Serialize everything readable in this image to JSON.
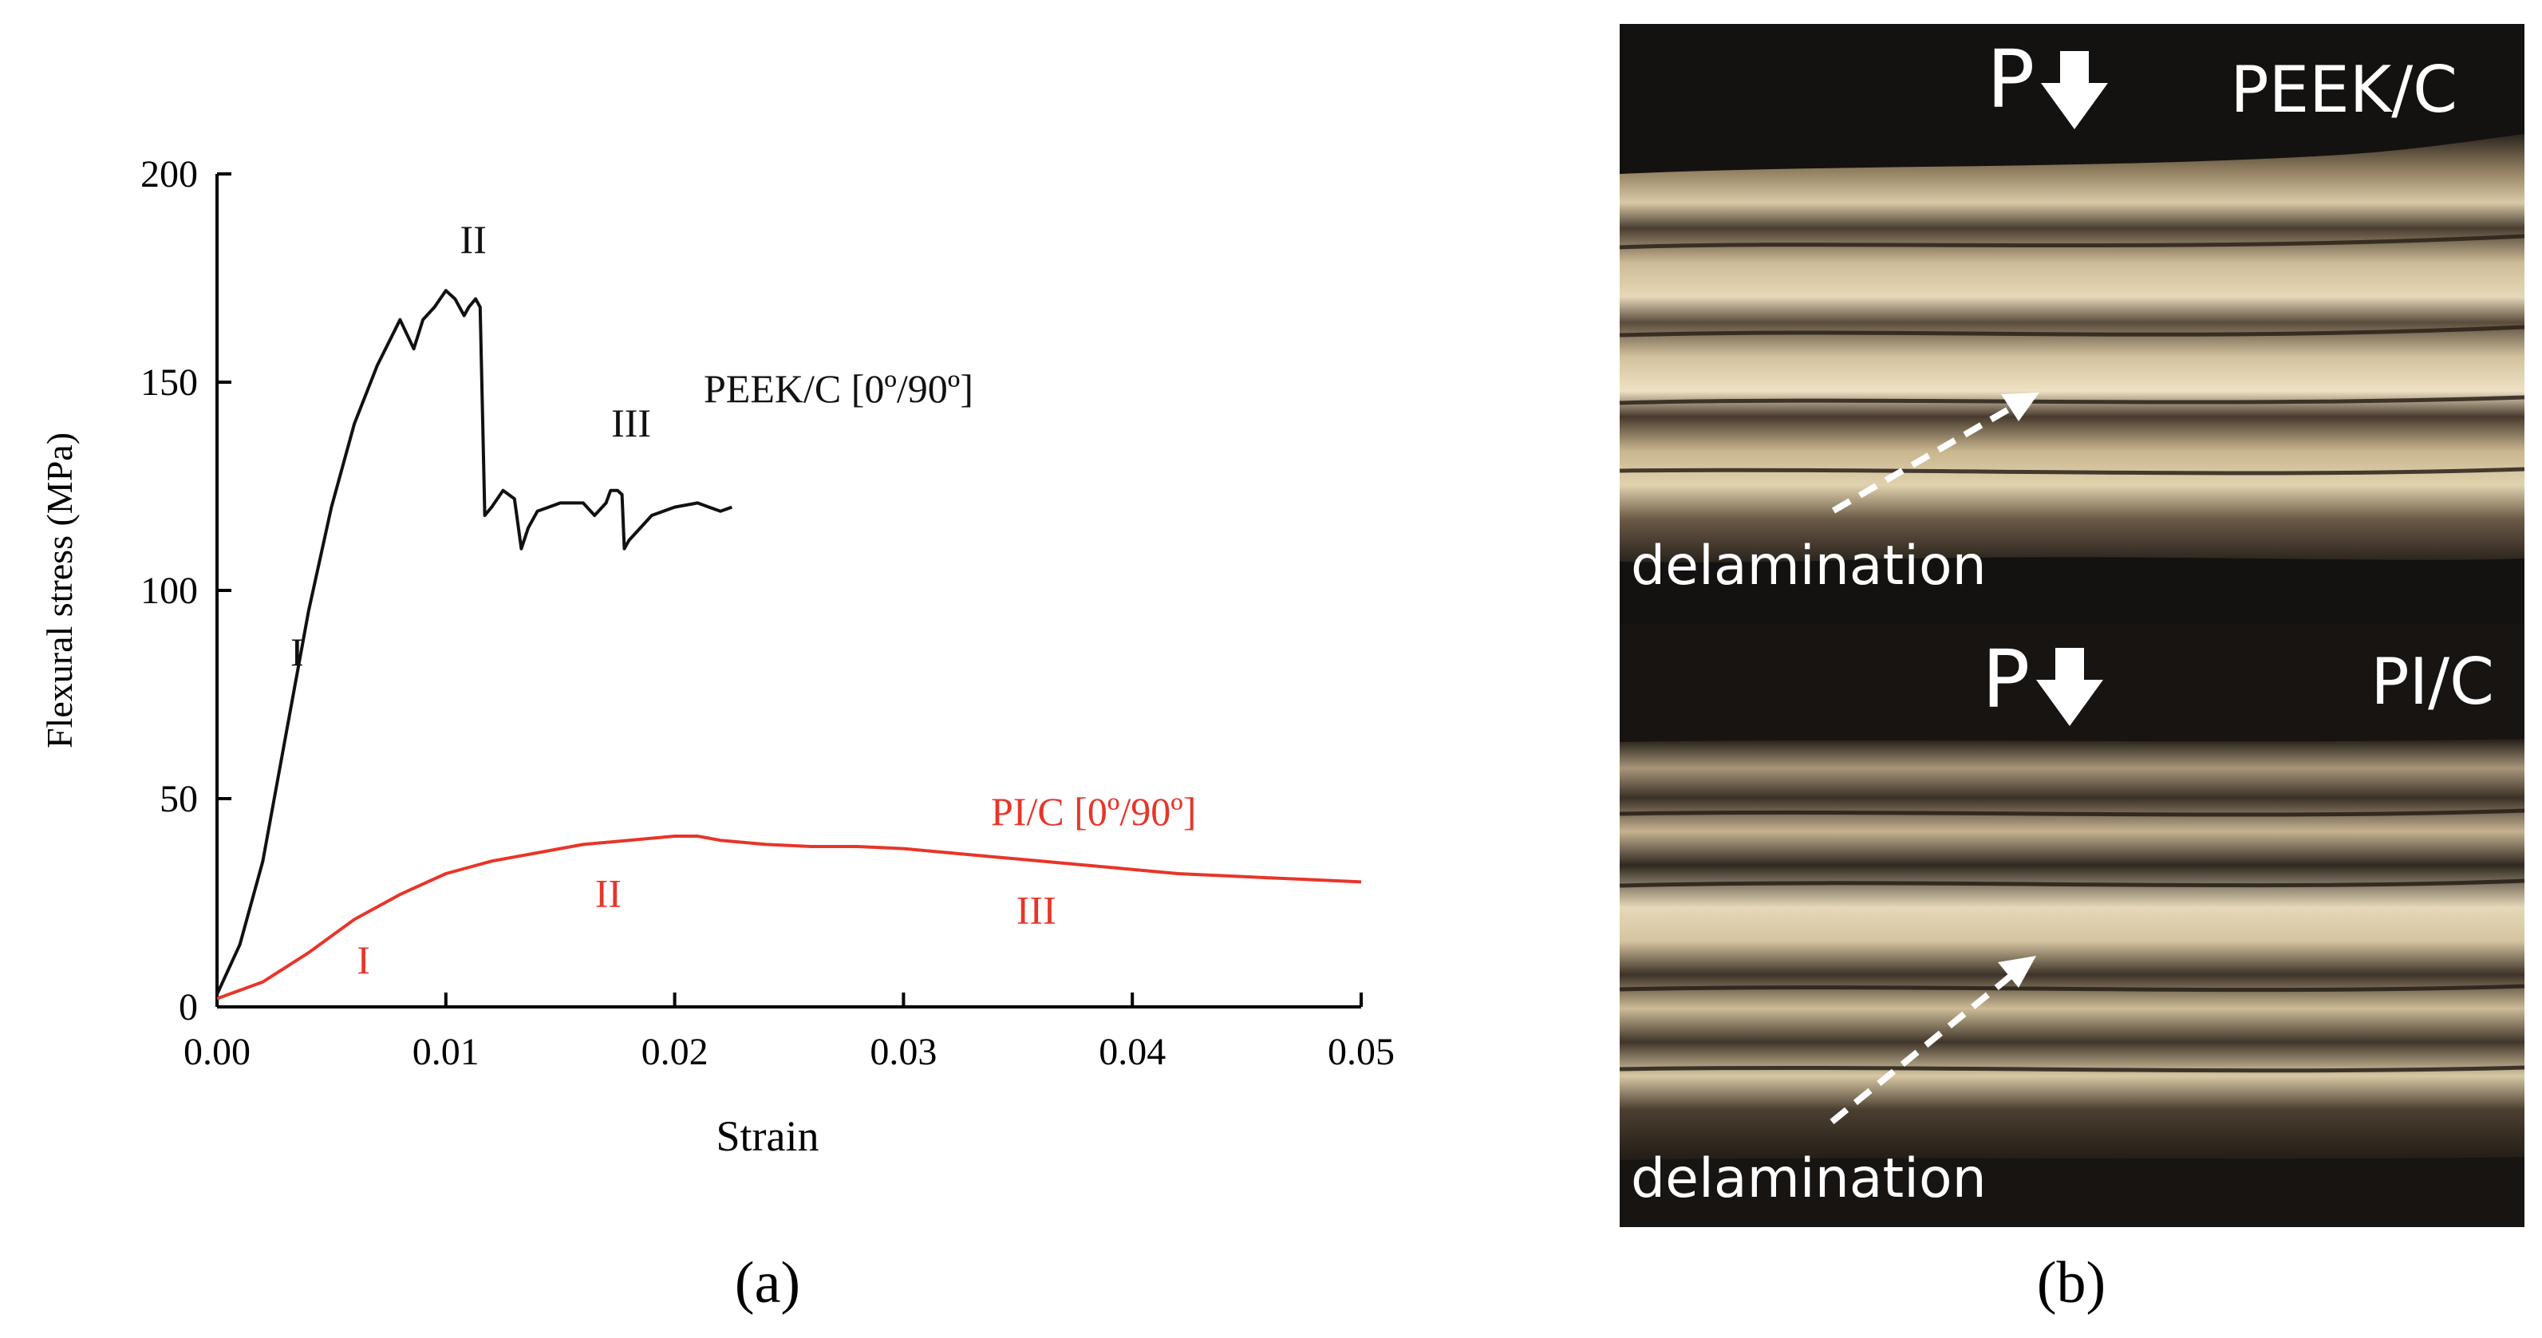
{
  "chart_data": {
    "type": "line",
    "xlabel": "Strain",
    "ylabel": "Flexural stress (MPa)",
    "xlim": [
      0,
      0.05
    ],
    "ylim": [
      0,
      200
    ],
    "xticks": [
      "0.00",
      "0.01",
      "0.02",
      "0.03",
      "0.04",
      "0.05"
    ],
    "yticks": [
      "0",
      "50",
      "100",
      "150",
      "200"
    ],
    "grid": false,
    "series": [
      {
        "name": "PEEK/C [0º/90º]",
        "color": "#111111",
        "x": [
          0,
          0.001,
          0.002,
          0.003,
          0.004,
          0.005,
          0.006,
          0.007,
          0.008,
          0.0086,
          0.009,
          0.0095,
          0.01,
          0.0104,
          0.0108,
          0.011,
          0.0113,
          0.0115,
          0.0117,
          0.012,
          0.0125,
          0.013,
          0.0133,
          0.0136,
          0.014,
          0.015,
          0.016,
          0.0165,
          0.017,
          0.0172,
          0.0175,
          0.0177,
          0.0178,
          0.018,
          0.019,
          0.02,
          0.021,
          0.022,
          0.0225
        ],
        "y": [
          3,
          15,
          35,
          65,
          95,
          120,
          140,
          154,
          165,
          158,
          165,
          168,
          172,
          170,
          166,
          168,
          170,
          168,
          118,
          120,
          124,
          122,
          110,
          115,
          119,
          121,
          121,
          118,
          121,
          124,
          124,
          123,
          110,
          112,
          118,
          120,
          121,
          119,
          120
        ]
      },
      {
        "name": "PI/C [0º/90º]",
        "color": "#e8352a",
        "x": [
          0,
          0.002,
          0.004,
          0.006,
          0.008,
          0.01,
          0.012,
          0.014,
          0.016,
          0.018,
          0.02,
          0.021,
          0.022,
          0.024,
          0.026,
          0.028,
          0.03,
          0.032,
          0.034,
          0.036,
          0.038,
          0.04,
          0.042,
          0.044,
          0.046,
          0.048,
          0.05
        ],
        "y": [
          2,
          6,
          13,
          21,
          27,
          32,
          35,
          37,
          39,
          40,
          41,
          41,
          40,
          39,
          38.5,
          38.5,
          38,
          37,
          36,
          35,
          34,
          33,
          32,
          31.5,
          31,
          30.5,
          30
        ]
      }
    ],
    "annotations": [
      {
        "text": "II",
        "series": "PEEK/C",
        "x": 0.0112,
        "y": 181,
        "color": "#111111"
      },
      {
        "text": "III",
        "series": "PEEK/C",
        "x": 0.0181,
        "y": 137,
        "color": "#111111"
      },
      {
        "text": "I",
        "series": "PEEK/C",
        "x": 0.0035,
        "y": 82,
        "color": "#111111"
      },
      {
        "text": "II",
        "series": "PI/C",
        "x": 0.0171,
        "y": 24,
        "color": "#e8352a"
      },
      {
        "text": "I",
        "series": "PI/C",
        "x": 0.0064,
        "y": 8,
        "color": "#e8352a"
      },
      {
        "text": "III",
        "series": "PI/C",
        "x": 0.0358,
        "y": 20,
        "color": "#e8352a"
      }
    ]
  },
  "panels": {
    "a_label": "(a)",
    "b_label": "(b)"
  },
  "photo_top": {
    "load_label": "P",
    "material": "PEEK/C",
    "defect": "delamination"
  },
  "photo_bottom": {
    "load_label": "P",
    "material": "PI/C",
    "defect": "delamination"
  },
  "colors": {
    "photo_bg": "#141210",
    "fiber_light": "#d8c9a8",
    "fiber_dark": "#3a3128",
    "arrow": "#ffffff"
  }
}
